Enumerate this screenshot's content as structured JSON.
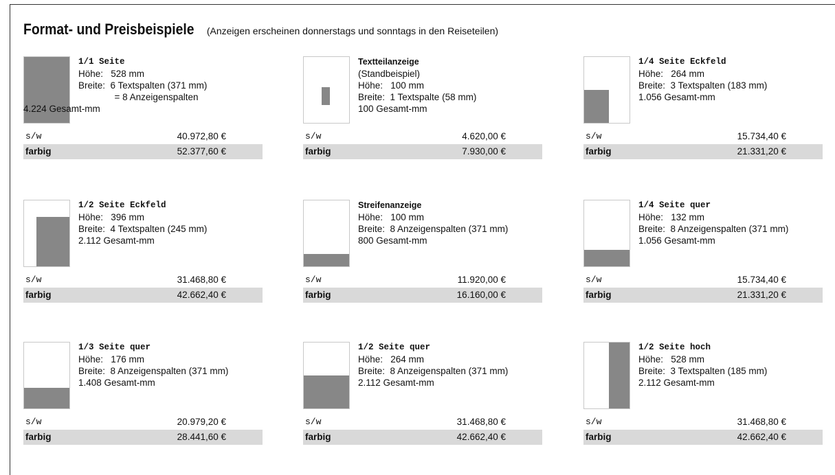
{
  "title": {
    "main": "Format- und Preisbeispiele",
    "sub": "(Anzeigen erscheinen donnerstags und sonntags in den Reiseteilen)"
  },
  "labels": {
    "sw": "s/w",
    "color": "farbig"
  },
  "colors": {
    "fill": "#878787",
    "band": "#d9d9d9",
    "thumb_border": "#c8c8c8"
  },
  "ads": [
    {
      "name": "1/1 Seite",
      "lines": [
        "Höhe:   528 mm",
        "Breite:  6 Textspalten (371 mm)",
        "              = 8 Anzeigenspalten",
        "4.224 Gesamt-mm"
      ],
      "price_sw": "40.972,80 €",
      "price_color": "52.377,60 €"
    },
    {
      "name": "Textteilanzeige",
      "lines": [
        "(Standbeispiel)",
        "Höhe:   100 mm",
        "Breite:  1 Textspalte (58 mm)",
        "100 Gesamt-mm"
      ],
      "price_sw": "4.620,00 €",
      "price_color": "7.930,00 €"
    },
    {
      "name": "1/4 Seite Eckfeld",
      "lines": [
        "Höhe:   264 mm",
        "Breite:  3 Textspalten (183 mm)",
        "1.056 Gesamt-mm"
      ],
      "price_sw": "15.734,40 €",
      "price_color": "21.331,20 €"
    },
    {
      "name": "1/2 Seite Eckfeld",
      "lines": [
        "Höhe:   396 mm",
        "Breite:  4 Textspalten (245 mm)",
        "2.112 Gesamt-mm"
      ],
      "price_sw": "31.468,80 €",
      "price_color": "42.662,40 €"
    },
    {
      "name": "Streifenanzeige",
      "lines": [
        "Höhe:   100 mm",
        "Breite:  8 Anzeigenspalten (371 mm)",
        "800 Gesamt-mm"
      ],
      "price_sw": "11.920,00 €",
      "price_color": "16.160,00 €"
    },
    {
      "name": "1/4 Seite quer",
      "lines": [
        "Höhe:   132 mm",
        "Breite:  8 Anzeigenspalten (371 mm)",
        "1.056 Gesamt-mm"
      ],
      "price_sw": "15.734,40 €",
      "price_color": "21.331,20 €"
    },
    {
      "name": "1/3 Seite quer",
      "lines": [
        "Höhe:   176 mm",
        "Breite:  8 Anzeigenspalten (371 mm)",
        "1.408 Gesamt-mm"
      ],
      "price_sw": "20.979,20 €",
      "price_color": "28.441,60 €"
    },
    {
      "name": "1/2 Seite quer",
      "lines": [
        "Höhe:   264 mm",
        "Breite:  8 Anzeigenspalten (371 mm)",
        "2.112 Gesamt-mm"
      ],
      "price_sw": "31.468,80 €",
      "price_color": "42.662,40 €"
    },
    {
      "name": "1/2 Seite hoch",
      "lines": [
        "Höhe:   528 mm",
        "Breite:  3 Textspalten (185 mm)",
        "2.112 Gesamt-mm"
      ],
      "price_sw": "31.468,80 €",
      "price_color": "42.662,40 €"
    }
  ]
}
